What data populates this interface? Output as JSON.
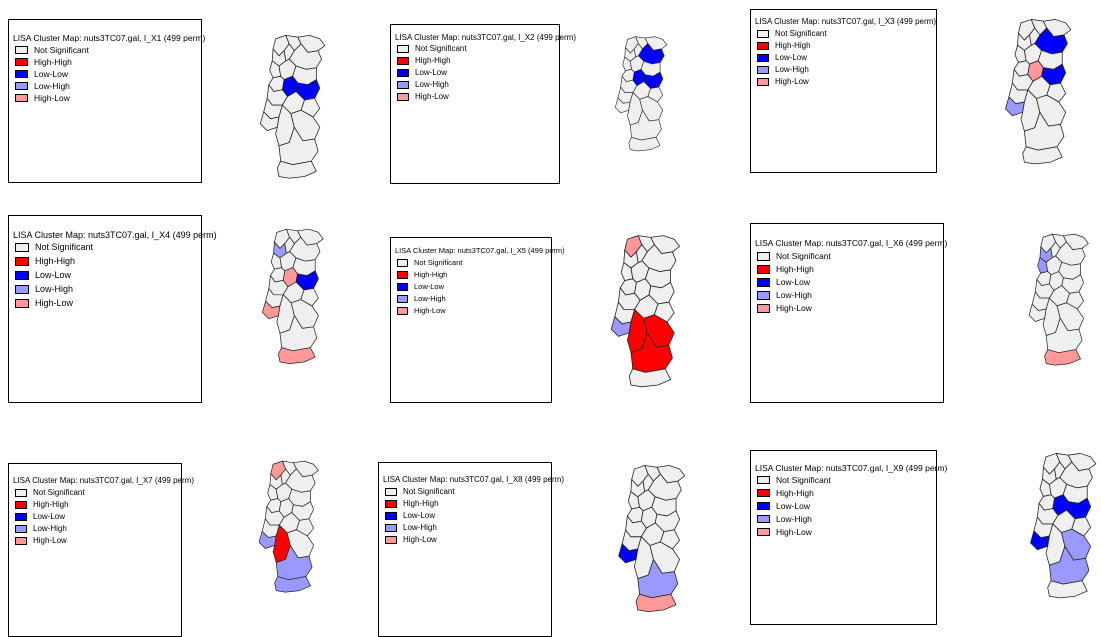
{
  "colors": {
    "not_significant": "#efefef",
    "high_high": "#ff0000",
    "low_low": "#0000ff",
    "low_high": "#9999ff",
    "high_low": "#ff9999"
  },
  "legend_labels": {
    "not_significant": "Not Significant",
    "high_high": "High-High",
    "low_low": "Low-Low",
    "low_high": "Low-High",
    "high_low": "High-Low"
  },
  "maps": [
    {
      "id": "x1",
      "title": "LISA Cluster Map: nuts3TC07.gal, I_X1 (499 perm)",
      "clusters": {
        "inlandC": "low_low",
        "westC": "low_low"
      }
    },
    {
      "id": "x2",
      "title": "LISA Cluster Map: nuts3TC07.gal, I_X2 (499 perm)",
      "clusters": {
        "inlandC": "low_low",
        "westC": "low_low",
        "neInland": "low_low"
      }
    },
    {
      "id": "x3",
      "title": "LISA Cluster Map: nuts3TC07.gal, I_X3 (499 perm)",
      "clusters": {
        "inlandC": "low_low",
        "neInland": "low_low",
        "coastLx": "low_high",
        "westC": "high_low"
      }
    },
    {
      "id": "x4",
      "title": "LISA Cluster Map: nuts3TC07.gal, I_X4 (499 perm)",
      "clusters": {
        "nw1": "low_high",
        "inlandC": "low_low",
        "westC": "high_low",
        "coastLx": "high_low",
        "south": "high_low"
      }
    },
    {
      "id": "x5",
      "title": "LISA Cluster Map: nuts3TC07.gal, I_X5 (499 perm)",
      "clusters": {
        "north1": "high_low",
        "coastLx": "low_high",
        "alentejoW": "high_high",
        "alentejoE": "high_high",
        "alentejoS": "high_high"
      }
    },
    {
      "id": "x6",
      "title": "LISA Cluster Map: nuts3TC07.gal, I_X6 (499 perm)",
      "clusters": {
        "nw1": "low_high",
        "nw2": "low_high",
        "south": "high_low"
      }
    },
    {
      "id": "x7",
      "title": "LISA Cluster Map: nuts3TC07.gal, I_X7 (499 perm)",
      "clusters": {
        "north1": "high_low",
        "coastLx": "low_high",
        "alentejoW": "high_high",
        "alentejoS": "low_high",
        "south": "low_high"
      }
    },
    {
      "id": "x8",
      "title": "LISA Cluster Map: nuts3TC07.gal, I_X8 (499 perm)",
      "clusters": {
        "coastLx": "low_low",
        "alentejoS": "low_high",
        "south": "high_low"
      }
    },
    {
      "id": "x9",
      "title": "LISA Cluster Map: nuts3TC07.gal, I_X9 (499 perm)",
      "clusters": {
        "inlandC": "low_low",
        "westC": "low_low",
        "coastLx": "low_low",
        "alentejoS": "low_high",
        "alentejoE": "low_high"
      }
    }
  ]
}
